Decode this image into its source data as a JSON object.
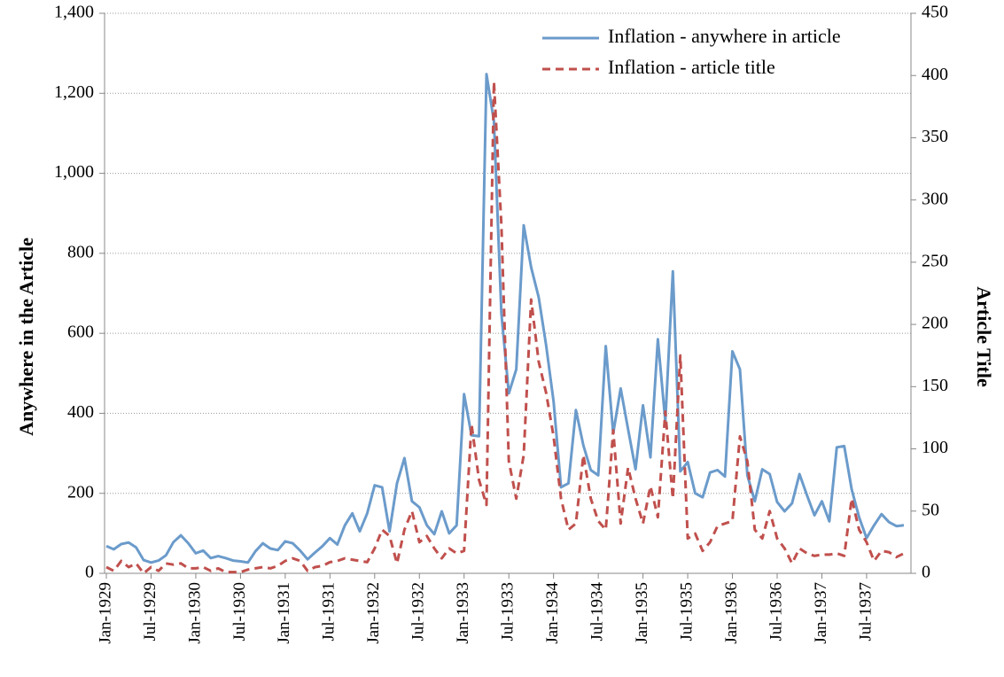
{
  "chart_data": {
    "type": "line",
    "ylabel": "Anywhere in the Article",
    "y2label": "Article Title",
    "categories": [
      "Jan-1929",
      null,
      null,
      null,
      null,
      null,
      "Jul-1929",
      null,
      null,
      null,
      null,
      null,
      "Jan-1930",
      null,
      null,
      null,
      null,
      null,
      "Jul-1930",
      null,
      null,
      null,
      null,
      null,
      "Jan-1931",
      null,
      null,
      null,
      null,
      null,
      "Jul-1931",
      null,
      null,
      null,
      null,
      null,
      "Jan-1932",
      null,
      null,
      null,
      null,
      null,
      "Jul-1932",
      null,
      null,
      null,
      null,
      null,
      "Jan-1933",
      null,
      null,
      null,
      null,
      null,
      "Jul-1933",
      null,
      null,
      null,
      null,
      null,
      "Jan-1934",
      null,
      null,
      null,
      null,
      null,
      "Jul-1934",
      null,
      null,
      null,
      null,
      null,
      "Jan-1935",
      null,
      null,
      null,
      null,
      null,
      "Jul-1935",
      null,
      null,
      null,
      null,
      null,
      "Jan-1936",
      null,
      null,
      null,
      null,
      null,
      "Jul-1936",
      null,
      null,
      null,
      null,
      null,
      "Jan-1937",
      null,
      null,
      null,
      null,
      null,
      "Jul-1937",
      null,
      null,
      null,
      null,
      null
    ],
    "series": [
      {
        "name": "Inflation - anywhere in article",
        "color": "#6b9bcb",
        "dashed": false,
        "axis": "y",
        "values": [
          68,
          60,
          73,
          77,
          65,
          33,
          27,
          32,
          45,
          78,
          95,
          75,
          50,
          57,
          38,
          43,
          38,
          32,
          30,
          27,
          55,
          75,
          62,
          58,
          80,
          75,
          57,
          35,
          52,
          68,
          88,
          72,
          120,
          150,
          105,
          150,
          220,
          215,
          105,
          225,
          288,
          180,
          165,
          120,
          98,
          155,
          100,
          120,
          448,
          345,
          343,
          1248,
          1130,
          650,
          450,
          510,
          870,
          765,
          690,
          570,
          430,
          215,
          225,
          408,
          320,
          258,
          245,
          568,
          350,
          462,
          360,
          260,
          420,
          290,
          585,
          380,
          755,
          255,
          278,
          200,
          190,
          252,
          258,
          242,
          555,
          510,
          245,
          180,
          260,
          248,
          178,
          155,
          175,
          248,
          195,
          145,
          180,
          130,
          315,
          318,
          210,
          140,
          88,
          120,
          148,
          128,
          118,
          120
        ]
      },
      {
        "name": "Inflation - article title",
        "color": "#c0504d",
        "dashed": true,
        "axis": "y2",
        "values": [
          5,
          2,
          10,
          5,
          8,
          0,
          5,
          2,
          8,
          7,
          8,
          4,
          4,
          5,
          2,
          4,
          1,
          1,
          1,
          3,
          4,
          5,
          4,
          6,
          10,
          12,
          10,
          2,
          5,
          6,
          9,
          10,
          12,
          11,
          10,
          9,
          20,
          35,
          30,
          8,
          35,
          50,
          25,
          30,
          20,
          12,
          20,
          16,
          18,
          120,
          75,
          55,
          395,
          280,
          90,
          60,
          95,
          220,
          170,
          145,
          110,
          60,
          35,
          40,
          95,
          60,
          42,
          35,
          115,
          40,
          85,
          60,
          40,
          70,
          45,
          130,
          60,
          175,
          28,
          32,
          18,
          25,
          38,
          40,
          42,
          110,
          90,
          35,
          28,
          50,
          28,
          20,
          8,
          20,
          16,
          14,
          15,
          15,
          16,
          14,
          60,
          35,
          25,
          10,
          18,
          17,
          13,
          16
        ]
      }
    ],
    "ylim": [
      0,
      1400
    ],
    "yticks": [
      0,
      200,
      400,
      600,
      800,
      {
        "value": 1000,
        "label": "1,000"
      },
      {
        "value": 1200,
        "label": "1,200"
      },
      {
        "value": 1400,
        "label": "1,400"
      }
    ],
    "y2lim": [
      0,
      450
    ],
    "y2ticks": [
      0,
      50,
      100,
      150,
      200,
      250,
      300,
      350,
      400,
      450
    ],
    "grid": true,
    "legend": "upper right"
  }
}
